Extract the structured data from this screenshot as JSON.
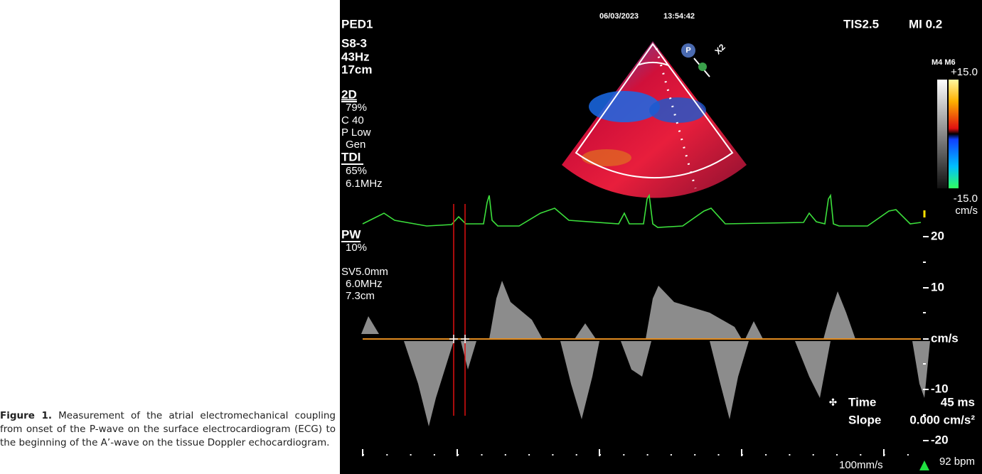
{
  "caption": {
    "label": "Figure 1.",
    "text": "Measurement of the atrial electromechanical coupling from onset of the P-wave on the surface electrocardiogram (ECG) to the beginning of the A’-wave on the tissue Doppler echocardiogram."
  },
  "header": {
    "date": "06/03/2023",
    "time": "13:54:42",
    "preset": "PED1",
    "tis": "TIS2.5",
    "mi": "MI 0.2"
  },
  "settings": [
    "S8-3",
    "43Hz",
    "17cm"
  ],
  "mode_2d": {
    "label": "2D",
    "lines": [
      "79%",
      "C 40",
      "P Low",
      "Gen"
    ]
  },
  "tdi": {
    "label": "TDI",
    "lines": [
      "65%",
      "6.1MHz"
    ]
  },
  "pw": {
    "label": "PW",
    "lines": [
      "10%"
    ]
  },
  "sample": [
    "SV5.0mm",
    "6.0MHz",
    "7.3cm"
  ],
  "color_bar": {
    "maps": "M4 M6",
    "max": "+15.0",
    "min": "-15.0",
    "unit": "cm/s"
  },
  "scale": [
    "20",
    "10",
    "cm/s",
    "-10",
    "-20"
  ],
  "measurement": {
    "time_label": "Time",
    "time_value": "45 ms",
    "slope_label": "Slope",
    "slope_value": "0.000 cm/s²"
  },
  "sweep": "100mm/s",
  "heart_rate": "92 bpm",
  "probe_icon": "P",
  "zoom": "X2"
}
